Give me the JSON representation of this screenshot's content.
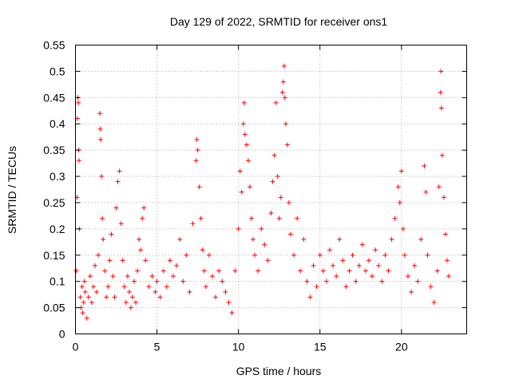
{
  "chart_data": {
    "type": "scatter",
    "title": "Day 129 of 2022, SRMTID for receiver ons1",
    "xlabel": "GPS time / hours",
    "ylabel": "SRMTID / TECUs",
    "xlim": [
      0,
      24
    ],
    "ylim": [
      0,
      0.55
    ],
    "xticks": [
      0,
      5,
      10,
      15,
      20
    ],
    "xtick_labels": [
      "0",
      "5",
      "10",
      "15",
      "20"
    ],
    "yticks": [
      0,
      0.05,
      0.1,
      0.15,
      0.2,
      0.25,
      0.3,
      0.35,
      0.4,
      0.45,
      0.5,
      0.55
    ],
    "ytick_labels": [
      "0",
      "0.05",
      "0.1",
      "0.15",
      "0.2",
      "0.25",
      "0.3",
      "0.35",
      "0.4",
      "0.45",
      "0.5",
      "0.55"
    ],
    "grid": true,
    "marker": "+",
    "color": "#ff0000",
    "series": [
      {
        "name": "SRMTID",
        "points": [
          [
            0.05,
            0.12
          ],
          [
            0.1,
            0.26
          ],
          [
            0.12,
            0.41
          ],
          [
            0.15,
            0.45
          ],
          [
            0.18,
            0.44
          ],
          [
            0.2,
            0.35
          ],
          [
            0.22,
            0.33
          ],
          [
            0.25,
            0.2
          ],
          [
            0.3,
            0.07
          ],
          [
            0.35,
            0.05
          ],
          [
            0.4,
            0.09
          ],
          [
            0.45,
            0.04
          ],
          [
            0.5,
            0.06
          ],
          [
            0.55,
            0.1
          ],
          [
            0.6,
            0.08
          ],
          [
            0.7,
            0.03
          ],
          [
            0.8,
            0.07
          ],
          [
            0.9,
            0.11
          ],
          [
            1.0,
            0.06
          ],
          [
            1.1,
            0.09
          ],
          [
            1.2,
            0.13
          ],
          [
            1.3,
            0.08
          ],
          [
            1.4,
            0.15
          ],
          [
            1.5,
            0.42
          ],
          [
            1.52,
            0.39
          ],
          [
            1.55,
            0.37
          ],
          [
            1.6,
            0.3
          ],
          [
            1.65,
            0.22
          ],
          [
            1.7,
            0.18
          ],
          [
            1.8,
            0.12
          ],
          [
            1.9,
            0.07
          ],
          [
            2.0,
            0.09
          ],
          [
            2.1,
            0.14
          ],
          [
            2.2,
            0.19
          ],
          [
            2.3,
            0.11
          ],
          [
            2.4,
            0.07
          ],
          [
            2.5,
            0.24
          ],
          [
            2.6,
            0.29
          ],
          [
            2.7,
            0.31
          ],
          [
            2.8,
            0.21
          ],
          [
            2.9,
            0.14
          ],
          [
            3.0,
            0.09
          ],
          [
            3.1,
            0.06
          ],
          [
            3.2,
            0.11
          ],
          [
            3.3,
            0.08
          ],
          [
            3.4,
            0.05
          ],
          [
            3.5,
            0.07
          ],
          [
            3.6,
            0.1
          ],
          [
            3.7,
            0.06
          ],
          [
            3.8,
            0.12
          ],
          [
            3.9,
            0.18
          ],
          [
            4.0,
            0.16
          ],
          [
            4.1,
            0.22
          ],
          [
            4.2,
            0.24
          ],
          [
            4.3,
            0.14
          ],
          [
            4.5,
            0.09
          ],
          [
            4.7,
            0.11
          ],
          [
            4.9,
            0.08
          ],
          [
            5.0,
            0.1
          ],
          [
            5.2,
            0.07
          ],
          [
            5.4,
            0.12
          ],
          [
            5.6,
            0.09
          ],
          [
            5.8,
            0.14
          ],
          [
            6.0,
            0.11
          ],
          [
            6.2,
            0.13
          ],
          [
            6.4,
            0.18
          ],
          [
            6.6,
            0.1
          ],
          [
            6.8,
            0.15
          ],
          [
            7.0,
            0.08
          ],
          [
            7.2,
            0.21
          ],
          [
            7.4,
            0.33
          ],
          [
            7.45,
            0.37
          ],
          [
            7.5,
            0.35
          ],
          [
            7.6,
            0.28
          ],
          [
            7.7,
            0.22
          ],
          [
            7.8,
            0.16
          ],
          [
            7.9,
            0.12
          ],
          [
            8.0,
            0.09
          ],
          [
            8.2,
            0.15
          ],
          [
            8.4,
            0.11
          ],
          [
            8.6,
            0.07
          ],
          [
            8.8,
            0.12
          ],
          [
            9.0,
            0.1
          ],
          [
            9.2,
            0.08
          ],
          [
            9.4,
            0.06
          ],
          [
            9.6,
            0.04
          ],
          [
            9.8,
            0.12
          ],
          [
            10.0,
            0.2
          ],
          [
            10.1,
            0.31
          ],
          [
            10.2,
            0.27
          ],
          [
            10.3,
            0.4
          ],
          [
            10.35,
            0.44
          ],
          [
            10.4,
            0.38
          ],
          [
            10.5,
            0.36
          ],
          [
            10.6,
            0.33
          ],
          [
            10.7,
            0.28
          ],
          [
            10.8,
            0.22
          ],
          [
            10.9,
            0.18
          ],
          [
            11.0,
            0.15
          ],
          [
            11.2,
            0.12
          ],
          [
            11.4,
            0.2
          ],
          [
            11.6,
            0.17
          ],
          [
            11.8,
            0.14
          ],
          [
            12.0,
            0.23
          ],
          [
            12.1,
            0.29
          ],
          [
            12.2,
            0.34
          ],
          [
            12.3,
            0.44
          ],
          [
            12.4,
            0.3
          ],
          [
            12.5,
            0.22
          ],
          [
            12.6,
            0.26
          ],
          [
            12.7,
            0.46
          ],
          [
            12.75,
            0.48
          ],
          [
            12.8,
            0.51
          ],
          [
            12.85,
            0.45
          ],
          [
            12.9,
            0.4
          ],
          [
            13.0,
            0.36
          ],
          [
            13.1,
            0.25
          ],
          [
            13.2,
            0.19
          ],
          [
            13.4,
            0.15
          ],
          [
            13.6,
            0.22
          ],
          [
            13.8,
            0.12
          ],
          [
            14.0,
            0.18
          ],
          [
            14.2,
            0.1
          ],
          [
            14.4,
            0.07
          ],
          [
            14.6,
            0.13
          ],
          [
            14.8,
            0.09
          ],
          [
            15.0,
            0.15
          ],
          [
            15.2,
            0.12
          ],
          [
            15.4,
            0.1
          ],
          [
            15.6,
            0.16
          ],
          [
            15.8,
            0.13
          ],
          [
            16.0,
            0.11
          ],
          [
            16.2,
            0.18
          ],
          [
            16.4,
            0.14
          ],
          [
            16.6,
            0.09
          ],
          [
            16.8,
            0.12
          ],
          [
            17.0,
            0.15
          ],
          [
            17.2,
            0.1
          ],
          [
            17.4,
            0.13
          ],
          [
            17.6,
            0.17
          ],
          [
            17.8,
            0.12
          ],
          [
            18.0,
            0.14
          ],
          [
            18.2,
            0.11
          ],
          [
            18.4,
            0.16
          ],
          [
            18.6,
            0.13
          ],
          [
            18.8,
            0.1
          ],
          [
            19.0,
            0.15
          ],
          [
            19.2,
            0.12
          ],
          [
            19.4,
            0.18
          ],
          [
            19.6,
            0.22
          ],
          [
            19.8,
            0.28
          ],
          [
            19.9,
            0.25
          ],
          [
            20.0,
            0.31
          ],
          [
            20.1,
            0.2
          ],
          [
            20.2,
            0.15
          ],
          [
            20.4,
            0.11
          ],
          [
            20.6,
            0.08
          ],
          [
            20.8,
            0.13
          ],
          [
            21.0,
            0.1
          ],
          [
            21.2,
            0.18
          ],
          [
            21.4,
            0.32
          ],
          [
            21.5,
            0.27
          ],
          [
            21.6,
            0.15
          ],
          [
            21.8,
            0.09
          ],
          [
            22.0,
            0.06
          ],
          [
            22.2,
            0.12
          ],
          [
            22.3,
            0.28
          ],
          [
            22.4,
            0.46
          ],
          [
            22.42,
            0.5
          ],
          [
            22.45,
            0.43
          ],
          [
            22.5,
            0.34
          ],
          [
            22.6,
            0.26
          ],
          [
            22.7,
            0.19
          ],
          [
            22.8,
            0.14
          ],
          [
            22.9,
            0.11
          ]
        ]
      }
    ]
  }
}
